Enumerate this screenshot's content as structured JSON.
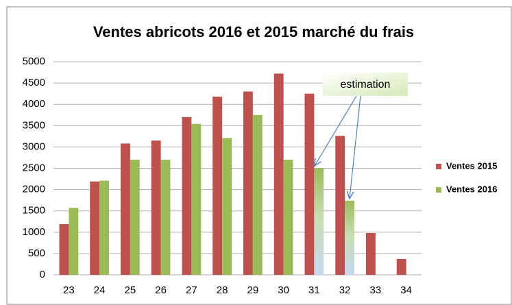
{
  "chart_data": {
    "type": "bar",
    "title": "Ventes abricots 2016 et 2015   marché du frais",
    "categories": [
      "23",
      "24",
      "25",
      "26",
      "27",
      "28",
      "29",
      "30",
      "31",
      "32",
      "33",
      "34"
    ],
    "series": [
      {
        "name": "Ventes 2015",
        "color": "#c0504d",
        "values": [
          1190,
          2190,
          3080,
          3150,
          3700,
          4180,
          4300,
          4720,
          4250,
          3260,
          980,
          370
        ]
      },
      {
        "name": "Ventes 2016",
        "color": "#9bbb59",
        "values": [
          1570,
          2210,
          2700,
          2700,
          3540,
          3210,
          3750,
          2700,
          2500,
          1740,
          null,
          null
        ]
      }
    ],
    "annotation": "estimation",
    "ylim": [
      0,
      5000
    ],
    "yticks": [
      0,
      500,
      1000,
      1500,
      2000,
      2500,
      3000,
      3500,
      4000,
      4500,
      5000
    ],
    "grid": true,
    "legend": "right"
  }
}
